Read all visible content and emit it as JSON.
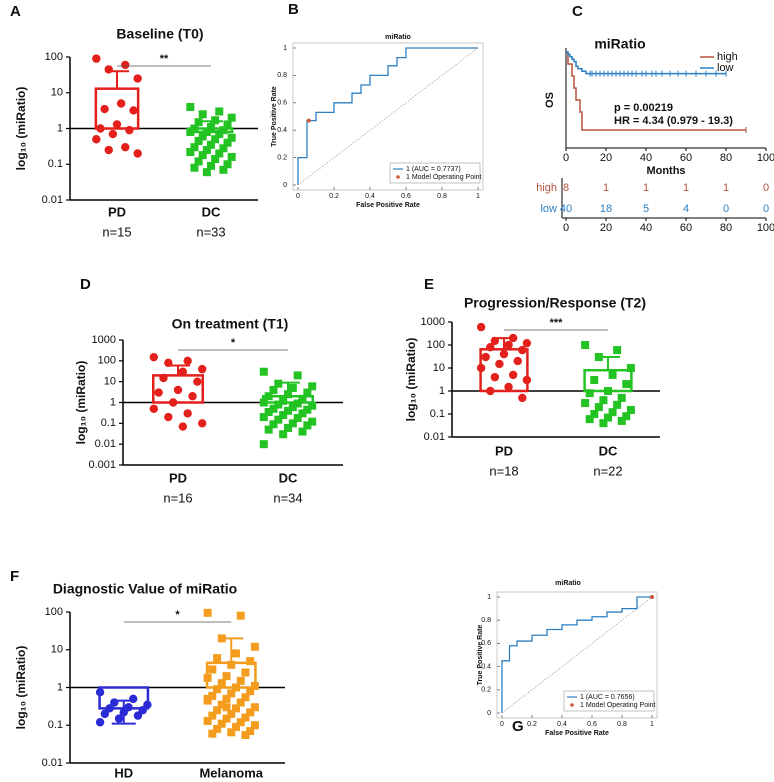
{
  "chart_data": [
    {
      "type": "dot-bar",
      "panel": "A",
      "title": "Baseline (T0)",
      "y_label": "log₁₀ (miRatio)",
      "log_scale": true,
      "ylim": [
        0.01,
        100
      ],
      "yticks": [
        0.01,
        0.1,
        1,
        10,
        100
      ],
      "baseline": 1,
      "significance": "**",
      "series": [
        {
          "name": "PD",
          "n_label": "n=15",
          "color": "#e3201b",
          "marker": "circle",
          "mean": 13,
          "error": 27,
          "values": [
            90,
            60,
            45,
            25,
            5,
            3.5,
            3.2,
            1.3,
            1,
            0.9,
            0.7,
            0.5,
            0.3,
            0.25,
            0.2
          ]
        },
        {
          "name": "DC",
          "n_label": "n=33",
          "color": "#22c322",
          "marker": "square",
          "mean": 0.8,
          "error": 0.8,
          "values": [
            4,
            3,
            2.5,
            2,
            1.7,
            1.5,
            1.3,
            1.1,
            1,
            0.9,
            0.8,
            0.8,
            0.7,
            0.6,
            0.55,
            0.5,
            0.45,
            0.4,
            0.35,
            0.3,
            0.28,
            0.25,
            0.22,
            0.2,
            0.18,
            0.16,
            0.14,
            0.12,
            0.1,
            0.09,
            0.08,
            0.07,
            0.06
          ]
        }
      ]
    },
    {
      "type": "roc",
      "panel": "B",
      "title": "miRatio",
      "x_label": "False Positive Rate",
      "y_label": "True Positive Rate",
      "xlim": [
        0,
        1
      ],
      "ylim": [
        0,
        1
      ],
      "xticks": [
        0,
        0.2,
        0.4,
        0.6,
        0.8,
        1
      ],
      "yticks": [
        0,
        0.2,
        0.4,
        0.6,
        0.8,
        1
      ],
      "chance_line": true,
      "series": [
        {
          "name": "1 (AUC = 0.7737)",
          "color": "#2d7fc1",
          "x": [
            0,
            0,
            0.05,
            0.05,
            0.1,
            0.1,
            0.2,
            0.2,
            0.3,
            0.3,
            0.35,
            0.35,
            0.4,
            0.4,
            0.5,
            0.5,
            0.55,
            0.55,
            0.6,
            0.6,
            1
          ],
          "values": [
            0,
            0.2,
            0.2,
            0.47,
            0.47,
            0.53,
            0.53,
            0.6,
            0.6,
            0.67,
            0.67,
            0.73,
            0.73,
            0.8,
            0.8,
            0.87,
            0.87,
            0.93,
            0.93,
            1,
            1
          ]
        }
      ],
      "operating_point": {
        "name": "1 Model Operating Point",
        "color": "#c8583c",
        "x": 0.06,
        "y": 0.47
      }
    },
    {
      "type": "km",
      "panel": "C",
      "title": "miRatio",
      "y_label": "OS",
      "x_label": "Months",
      "xlim": [
        0,
        100
      ],
      "ylim": [
        0,
        1
      ],
      "xticks": [
        0,
        20,
        40,
        60,
        80,
        100
      ],
      "annotations": [
        "p = 0.00219",
        "HR = 4.34 (0.979 - 19.3)"
      ],
      "series": [
        {
          "name": "high",
          "color": "#b5533c",
          "x": [
            0,
            1,
            3,
            4,
            5,
            7,
            8
          ],
          "values": [
            1,
            0.875,
            0.75,
            0.625,
            0.5,
            0.375,
            0.1875
          ],
          "censored_x": [
            90
          ]
        },
        {
          "name": "low",
          "color": "#2b7fc4",
          "x": [
            0,
            1,
            2,
            3,
            4,
            5,
            6,
            8,
            10
          ],
          "values": [
            1,
            0.975,
            0.95,
            0.925,
            0.9,
            0.85,
            0.825,
            0.8,
            0.775
          ],
          "censored_x": [
            12,
            13,
            15,
            17,
            19,
            21,
            23,
            25,
            27,
            29,
            31,
            33,
            35,
            38,
            40,
            43,
            45,
            48,
            52,
            56,
            60,
            65,
            70,
            75,
            80
          ]
        }
      ],
      "risk_table": [
        {
          "name": "high",
          "values": [
            8,
            1,
            1,
            1,
            1,
            0
          ]
        },
        {
          "name": "low",
          "values": [
            40,
            18,
            5,
            4,
            0,
            0
          ]
        }
      ]
    },
    {
      "type": "dot-bar",
      "panel": "D",
      "title": "On treatment (T1)",
      "y_label": "log₁₀ (miRatio)",
      "log_scale": true,
      "ylim": [
        0.001,
        1000
      ],
      "yticks": [
        0.001,
        0.01,
        0.1,
        1,
        10,
        100,
        1000
      ],
      "baseline": 1,
      "significance": "*",
      "series": [
        {
          "name": "PD",
          "n_label": "n=16",
          "color": "#e3201b",
          "marker": "circle",
          "mean": 20,
          "error": 40,
          "values": [
            150,
            100,
            80,
            40,
            30,
            15,
            10,
            4,
            3,
            2,
            1,
            0.5,
            0.3,
            0.2,
            0.1,
            0.07
          ]
        },
        {
          "name": "DC",
          "n_label": "n=34",
          "color": "#22c322",
          "marker": "square",
          "mean": 2,
          "error": 7,
          "values": [
            30,
            20,
            8,
            6,
            5,
            4,
            3,
            2.5,
            2,
            1.5,
            1.2,
            1,
            0.9,
            0.8,
            0.7,
            0.6,
            0.5,
            0.45,
            0.4,
            0.35,
            0.3,
            0.25,
            0.2,
            0.18,
            0.15,
            0.12,
            0.1,
            0.09,
            0.08,
            0.06,
            0.05,
            0.04,
            0.03,
            0.01
          ]
        }
      ]
    },
    {
      "type": "dot-bar",
      "panel": "E",
      "title": "Progression/Response (T2)",
      "y_label": "log₁₀ (miRatio)",
      "log_scale": true,
      "ylim": [
        0.01,
        1000
      ],
      "yticks": [
        0.01,
        0.1,
        1,
        10,
        100,
        1000
      ],
      "baseline": 1,
      "significance": "***",
      "series": [
        {
          "name": "PD",
          "n_label": "n=18",
          "color": "#e3201b",
          "marker": "circle",
          "mean": 65,
          "error": 135,
          "values": [
            600,
            200,
            150,
            120,
            100,
            80,
            60,
            40,
            30,
            20,
            15,
            10,
            5,
            4,
            3,
            1.5,
            1,
            0.5
          ]
        },
        {
          "name": "DC",
          "n_label": "n=22",
          "color": "#22c322",
          "marker": "square",
          "mean": 8,
          "error": 22,
          "values": [
            100,
            60,
            30,
            10,
            5,
            3,
            2,
            1,
            0.8,
            0.5,
            0.4,
            0.3,
            0.25,
            0.2,
            0.15,
            0.12,
            0.1,
            0.08,
            0.07,
            0.06,
            0.05,
            0.04
          ]
        }
      ]
    },
    {
      "type": "dot-bar",
      "panel": "F",
      "title": "Diagnostic Value of miRatio",
      "y_label": "log₁₀ (miRatio)",
      "log_scale": true,
      "ylim": [
        0.01,
        100
      ],
      "yticks": [
        0.01,
        0.1,
        1,
        10,
        100
      ],
      "baseline": 1,
      "significance": "*",
      "series": [
        {
          "name": "HD",
          "color": "#2b2bd6",
          "marker": "circle",
          "mean": 0.28,
          "error": 0.17,
          "values": [
            0.75,
            0.5,
            0.4,
            0.35,
            0.3,
            0.28,
            0.25,
            0.22,
            0.2,
            0.18,
            0.15,
            0.12
          ]
        },
        {
          "name": "Melanoma",
          "color": "#f39c1e",
          "marker": "square",
          "mean": 4.5,
          "error": 15.5,
          "values": [
            95,
            80,
            20,
            12,
            8,
            6,
            5,
            4,
            3,
            2.5,
            2,
            1.8,
            1.5,
            1.3,
            1.1,
            1,
            0.9,
            0.8,
            0.7,
            0.6,
            0.55,
            0.5,
            0.45,
            0.4,
            0.35,
            0.3,
            0.28,
            0.25,
            0.22,
            0.2,
            0.18,
            0.16,
            0.15,
            0.13,
            0.12,
            0.11,
            0.1,
            0.09,
            0.08,
            0.07,
            0.065,
            0.06,
            0.055,
            0.3,
            0.5
          ]
        }
      ]
    },
    {
      "type": "roc",
      "panel": "G",
      "title": "miRatio",
      "x_label": "False Positive Rate",
      "y_label": "True Positive Rate",
      "xlim": [
        0,
        1
      ],
      "ylim": [
        0,
        1
      ],
      "xticks": [
        0,
        0.2,
        0.4,
        0.6,
        0.8,
        1
      ],
      "yticks": [
        0,
        0.2,
        0.4,
        0.6,
        0.8,
        1
      ],
      "chance_line": true,
      "series": [
        {
          "name": "1 (AUC = 0.7656)",
          "color": "#2d7fc1",
          "x": [
            0,
            0,
            0.05,
            0.05,
            0.1,
            0.1,
            0.2,
            0.2,
            0.3,
            0.3,
            0.4,
            0.4,
            0.5,
            0.5,
            0.6,
            0.6,
            0.7,
            0.7,
            0.8,
            0.8,
            0.9,
            0.9,
            1
          ],
          "values": [
            0,
            0.45,
            0.45,
            0.58,
            0.58,
            0.62,
            0.62,
            0.67,
            0.67,
            0.72,
            0.72,
            0.76,
            0.76,
            0.8,
            0.8,
            0.83,
            0.83,
            0.87,
            0.87,
            0.9,
            0.9,
            1,
            1
          ]
        }
      ],
      "operating_point": {
        "name": "1 Model Operating Point",
        "color": "#c8583c",
        "x": 1,
        "y": 1
      }
    }
  ]
}
